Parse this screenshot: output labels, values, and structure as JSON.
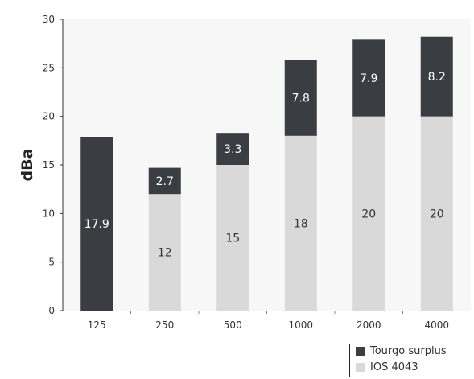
{
  "chart_data": {
    "type": "bar",
    "stacked": true,
    "categories": [
      "125",
      "250",
      "500",
      "1000",
      "2000",
      "4000"
    ],
    "series": [
      {
        "name": "IOS 4043",
        "color": "#d9d9d9",
        "label_color": "#333333",
        "values": [
          0,
          12,
          15,
          18,
          20,
          20
        ],
        "labels": [
          "",
          "12",
          "15",
          "18",
          "20",
          "20"
        ]
      },
      {
        "name": "Tourgo surplus",
        "color": "#3a3d42",
        "label_color": "#ffffff",
        "values": [
          17.9,
          2.7,
          3.3,
          7.8,
          7.9,
          8.2
        ],
        "labels": [
          "17.9",
          "2.7",
          "3.3",
          "7.8",
          "7.9",
          "8.2"
        ]
      }
    ],
    "ylabel": "dBa",
    "xlabel": "",
    "ylim": [
      0,
      30
    ],
    "yticks": [
      0,
      5,
      10,
      15,
      20,
      25,
      30
    ],
    "grid": false,
    "legend_position": "bottom-right",
    "plot_background": "#f7f7f7"
  }
}
